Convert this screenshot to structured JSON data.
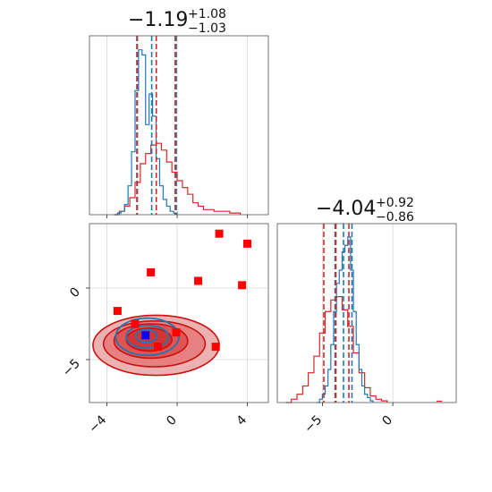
{
  "chart_data": {
    "type": "corner",
    "colors": {
      "red": "#d62728",
      "blue": "#1f77b4",
      "red_fill": "#f08080",
      "red_dark": "#cc1111",
      "marker_red": "#ff0000",
      "marker_blue": "#0000ff"
    },
    "param1": {
      "title": {
        "main": "−1.19",
        "plus": "+1.08",
        "minus": "−1.03"
      },
      "xlim": [
        -5.0,
        5.2
      ],
      "xticks": [
        {
          "v": -4,
          "label": "−4"
        },
        {
          "v": 0,
          "label": "0"
        },
        {
          "v": 4,
          "label": "4"
        }
      ],
      "quantile_lines": {
        "red": [
          -2.27,
          -1.19,
          -0.11
        ],
        "blue": [
          -2.3,
          -1.45,
          -0.05
        ]
      },
      "hist_blue_x": [
        -3.6,
        -3.4,
        -3.2,
        -3.0,
        -2.8,
        -2.6,
        -2.4,
        -2.2,
        -2.0,
        -1.8,
        -1.6,
        -1.4,
        -1.2,
        -1.0,
        -0.8,
        -0.6,
        -0.4,
        -0.2,
        0.0
      ],
      "hist_blue_y": [
        0,
        0.01,
        0.02,
        0.06,
        0.17,
        0.37,
        0.73,
        0.97,
        0.94,
        0.53,
        0.71,
        0.58,
        0.33,
        0.17,
        0.09,
        0.05,
        0.02,
        0.01,
        0
      ],
      "hist_red_x": [
        -3.6,
        -3.3,
        -3.0,
        -2.7,
        -2.4,
        -2.1,
        -1.8,
        -1.5,
        -1.2,
        -0.9,
        -0.6,
        -0.3,
        0.0,
        0.3,
        0.6,
        0.9,
        1.2,
        1.5,
        1.8,
        2.1,
        2.4,
        2.7,
        3.0,
        3.3,
        3.6
      ],
      "hist_red_y": [
        0,
        0.02,
        0.05,
        0.1,
        0.19,
        0.3,
        0.36,
        0.41,
        0.42,
        0.38,
        0.31,
        0.25,
        0.2,
        0.16,
        0.12,
        0.07,
        0.05,
        0.03,
        0.03,
        0.02,
        0.02,
        0.02,
        0.01,
        0.01,
        0
      ]
    },
    "param2": {
      "title": {
        "main": "−4.04",
        "plus": "+0.92",
        "minus": "−0.86"
      },
      "xlim": [
        -8.2,
        4.5
      ],
      "xticks": [
        {
          "v": -5,
          "label": "−5"
        },
        {
          "v": 0,
          "label": "0"
        }
      ],
      "quantile_lines": {
        "red": [
          -4.9,
          -4.04,
          -3.12
        ],
        "blue": [
          -4.1,
          -3.5,
          -2.9
        ]
      },
      "hist_blue_x": [
        -5.4,
        -5.2,
        -5.0,
        -4.8,
        -4.6,
        -4.4,
        -4.2,
        -4.0,
        -3.8,
        -3.6,
        -3.4,
        -3.2,
        -3.0,
        -2.8,
        -2.6,
        -2.4,
        -2.2,
        -2.0,
        -1.8,
        -1.6,
        -1.4
      ],
      "hist_blue_y": [
        0,
        0.02,
        0.05,
        0.1,
        0.2,
        0.35,
        0.55,
        0.72,
        0.8,
        0.91,
        0.95,
        1.0,
        0.8,
        0.55,
        0.35,
        0.2,
        0.1,
        0.05,
        0.03,
        0.01,
        0
      ],
      "hist_red_x": [
        -7.6,
        -7.2,
        -6.8,
        -6.4,
        -6.0,
        -5.6,
        -5.2,
        -4.8,
        -4.4,
        -4.0,
        -3.6,
        -3.2,
        -2.8,
        -2.4,
        -2.0,
        -1.6,
        -1.2,
        -0.8,
        -0.4
      ],
      "hist_red_y": [
        0,
        0.02,
        0.05,
        0.1,
        0.18,
        0.28,
        0.42,
        0.55,
        0.62,
        0.64,
        0.56,
        0.46,
        0.3,
        0.18,
        0.09,
        0.04,
        0.02,
        0.01,
        0
      ],
      "yticks": [
        {
          "v": 0,
          "label": "0"
        },
        {
          "v": -5,
          "label": "−5"
        }
      ]
    },
    "scatter_2d": {
      "ylim": [
        -8.0,
        4.5
      ],
      "red_squares": [
        [
          -3.4,
          -1.6
        ],
        [
          -2.4,
          -2.5
        ],
        [
          -1.5,
          1.1
        ],
        [
          -1.1,
          -4.1
        ],
        [
          -0.05,
          -3.1
        ],
        [
          1.2,
          0.5
        ],
        [
          2.2,
          -4.1
        ],
        [
          2.4,
          3.8
        ],
        [
          3.7,
          0.2
        ],
        [
          4.0,
          3.1
        ]
      ],
      "blue_square": [
        -1.8,
        -3.3
      ],
      "contours_red": [
        {
          "cx": -1.2,
          "cy": -4.0,
          "rx": 3.6,
          "ry": 2.1,
          "level": 3
        },
        {
          "cx": -1.3,
          "cy": -3.9,
          "rx": 2.9,
          "ry": 1.6,
          "level": 2
        },
        {
          "cx": -1.5,
          "cy": -3.7,
          "rx": 2.1,
          "ry": 1.2,
          "level": 1
        },
        {
          "cx": -1.6,
          "cy": -3.6,
          "rx": 1.3,
          "ry": 0.8,
          "level": 0
        }
      ],
      "contours_blue": [
        {
          "cx": -1.7,
          "cy": -3.4,
          "rx": 1.8,
          "ry": 1.3
        },
        {
          "cx": -1.7,
          "cy": -3.4,
          "rx": 1.2,
          "ry": 0.8
        },
        {
          "cx": -1.75,
          "cy": -3.35,
          "rx": 0.6,
          "ry": 0.45
        }
      ]
    }
  }
}
